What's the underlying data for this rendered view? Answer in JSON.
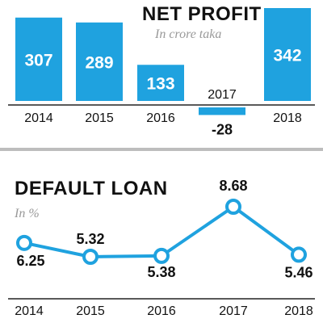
{
  "colors": {
    "accent": "#1fa2df",
    "text": "#111111",
    "muted": "#999999",
    "divider": "#bdbdbd",
    "baseline": "#222222"
  },
  "chart_data": [
    {
      "type": "bar",
      "title": "NET PROFIT",
      "subtitle": "In crore taka",
      "categories": [
        "2014",
        "2015",
        "2016",
        "2017",
        "2018"
      ],
      "values": [
        307,
        289,
        133,
        -28,
        342
      ],
      "value_labels": [
        "307",
        "289",
        "133",
        "-28",
        "342"
      ],
      "ylim": [
        -40,
        350
      ],
      "grid": false,
      "legend": "none"
    },
    {
      "type": "line",
      "title": "DEFAULT LOAN",
      "subtitle": "In %",
      "categories": [
        "2014",
        "2015",
        "2016",
        "2017",
        "2018"
      ],
      "values": [
        6.25,
        5.32,
        5.38,
        8.68,
        5.46
      ],
      "value_labels": [
        "6.25",
        "5.32",
        "5.38",
        "8.68",
        "5.46"
      ],
      "ylim": [
        4,
        10
      ],
      "grid": false,
      "legend": "none"
    }
  ]
}
